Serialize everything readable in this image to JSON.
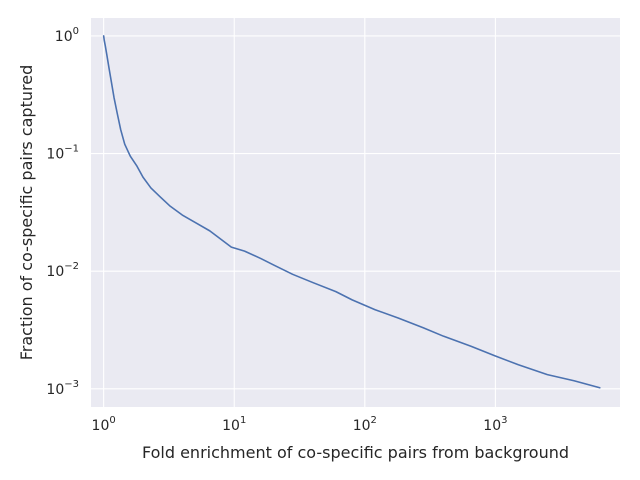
{
  "chart_data": {
    "type": "line",
    "title": "",
    "xlabel": "Fold enrichment of co-specific pairs from background",
    "ylabel": "Fraction of co-specific pairs captured",
    "xscale": "log",
    "yscale": "log",
    "xlim": [
      0.8,
      9000
    ],
    "ylim": [
      0.0007,
      1.42
    ],
    "grid": true,
    "background": "#eaeaf2",
    "gridColor": "#ffffff",
    "lineColor": "#4c72b0",
    "xticks": [
      {
        "value": 1,
        "base": "10",
        "exp": "0"
      },
      {
        "value": 10,
        "base": "10",
        "exp": "1"
      },
      {
        "value": 100,
        "base": "10",
        "exp": "2"
      },
      {
        "value": 1000,
        "base": "10",
        "exp": "3"
      }
    ],
    "yticks": [
      {
        "value": 1,
        "base": "10",
        "exp": "0"
      },
      {
        "value": 0.1,
        "base": "10",
        "exp": "−1"
      },
      {
        "value": 0.01,
        "base": "10",
        "exp": "−2"
      },
      {
        "value": 0.001,
        "base": "10",
        "exp": "−3"
      }
    ],
    "series": [
      {
        "x": [
          1.0,
          1.01,
          1.03,
          1.06,
          1.1,
          1.14,
          1.2,
          1.27,
          1.35,
          1.45,
          1.6,
          1.8,
          2.0,
          2.3,
          2.7,
          3.2,
          4.0,
          5.0,
          6.5,
          9.5,
          12,
          16,
          20,
          28,
          40,
          60,
          80,
          120,
          180,
          280,
          400,
          650,
          1000,
          1500,
          2500,
          4000,
          6300
        ],
        "y": [
          1.0,
          0.92,
          0.82,
          0.68,
          0.53,
          0.42,
          0.3,
          0.22,
          0.16,
          0.12,
          0.095,
          0.078,
          0.063,
          0.051,
          0.043,
          0.036,
          0.03,
          0.026,
          0.022,
          0.016,
          0.0148,
          0.0128,
          0.0113,
          0.0094,
          0.008,
          0.0067,
          0.0057,
          0.0047,
          0.004,
          0.0033,
          0.0028,
          0.0023,
          0.0019,
          0.0016,
          0.00132,
          0.00117,
          0.00102
        ]
      }
    ]
  }
}
